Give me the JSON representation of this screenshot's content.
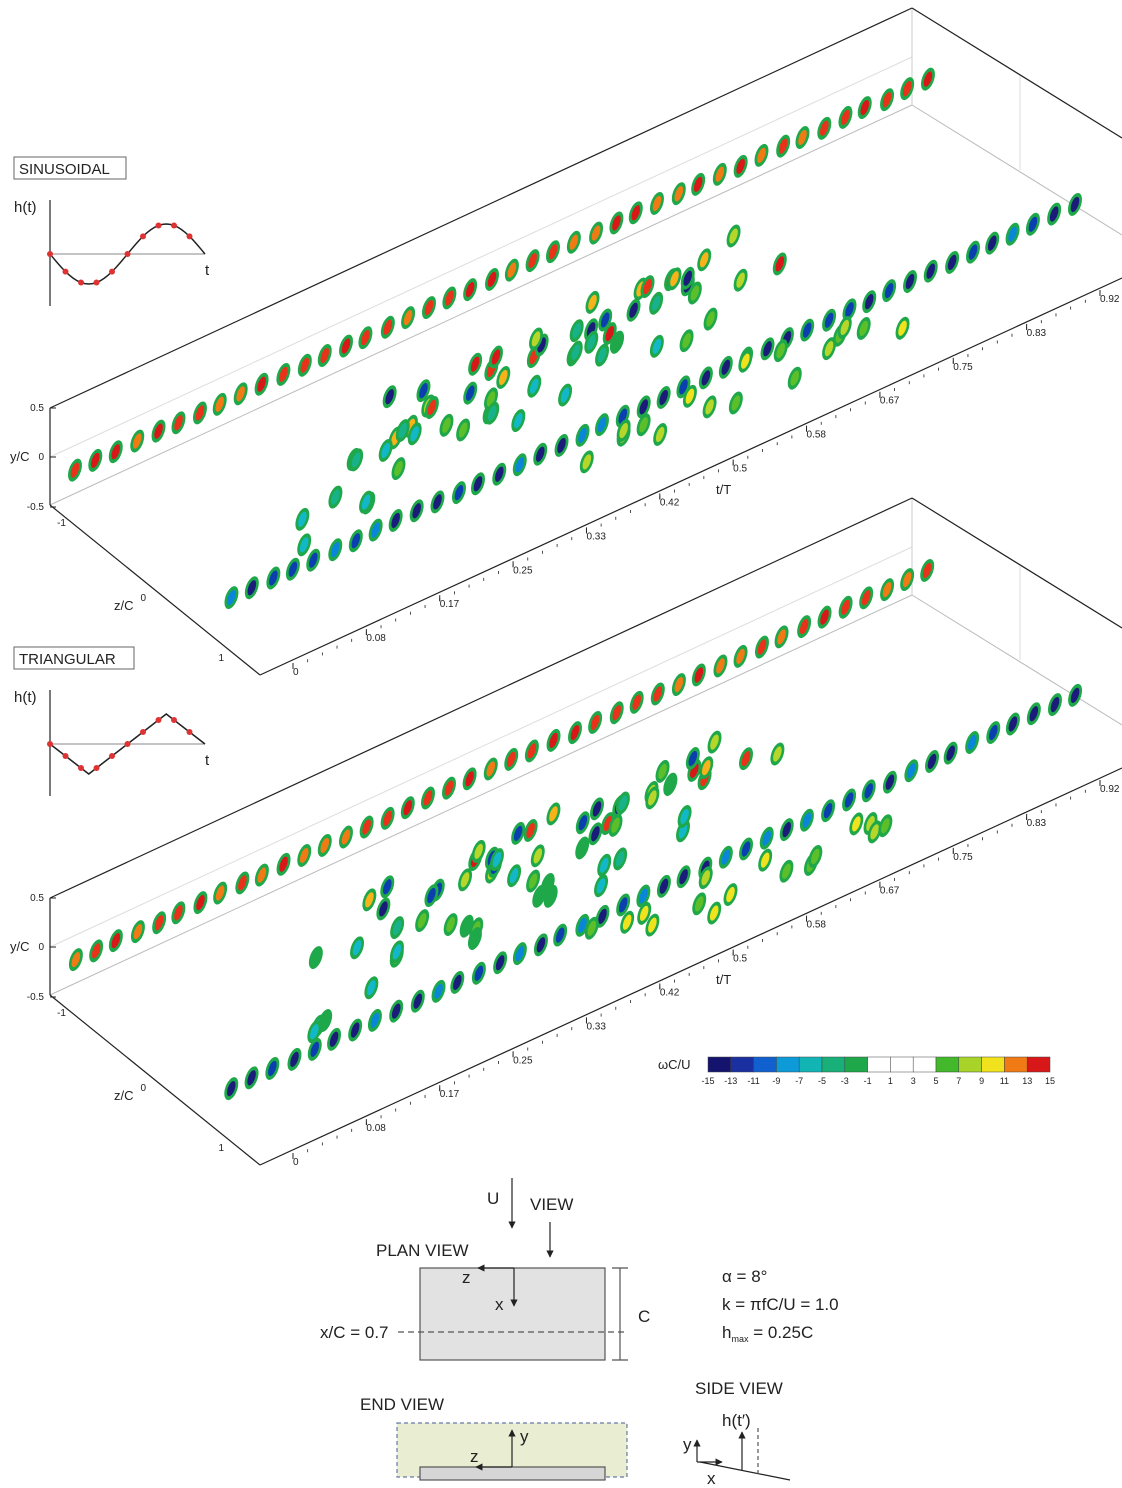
{
  "panels": [
    {
      "label": "SINUSOIDAL",
      "h_label": "h(t)",
      "t_label": "t",
      "y_axis_label": "y/C",
      "y_ticks": [
        "0.5",
        "0",
        "-0.5"
      ],
      "z_axis_label": "z/C",
      "z_ticks": [
        "-1",
        "0",
        "1"
      ],
      "t_axis_label": "t/T",
      "t_ticks": [
        "0",
        "0.08",
        "0.17",
        "0.25",
        "0.33",
        "0.42",
        "0.5",
        "0.58",
        "0.67",
        "0.75",
        "0.83",
        "0.92"
      ]
    },
    {
      "label": "TRIANGULAR",
      "h_label": "h(t)",
      "t_label": "t",
      "y_axis_label": "y/C",
      "y_ticks": [
        "0.5",
        "0",
        "-0.5"
      ],
      "z_axis_label": "z/C",
      "z_ticks": [
        "-1",
        "0",
        "1"
      ],
      "t_axis_label": "t/T",
      "t_ticks": [
        "0",
        "0.08",
        "0.17",
        "0.25",
        "0.33",
        "0.42",
        "0.5",
        "0.58",
        "0.67",
        "0.75",
        "0.83",
        "0.92"
      ]
    }
  ],
  "colorbar": {
    "label": "ωC/U",
    "ticks": [
      "-15",
      "-13",
      "-11",
      "-9",
      "-7",
      "-5",
      "-3",
      "-1",
      "1",
      "3",
      "5",
      "7",
      "9",
      "11",
      "13",
      "15"
    ]
  },
  "schematic": {
    "u_label": "U",
    "view_label": "VIEW",
    "plan_view": "PLAN VIEW",
    "plan_z": "z",
    "plan_x": "x",
    "section": "x/C = 0.7",
    "chord": "C",
    "alpha": "α = 8°",
    "k": "k = πfC/U = 1.0",
    "hmax_h": "h",
    "hmax_sub": "max",
    "hmax_value": " = 0.25C",
    "end_view": "END VIEW",
    "end_y": "y",
    "end_z": "z",
    "side_view": "SIDE VIEW",
    "side_h": "h(t′)",
    "side_y": "y",
    "side_x": "x"
  }
}
